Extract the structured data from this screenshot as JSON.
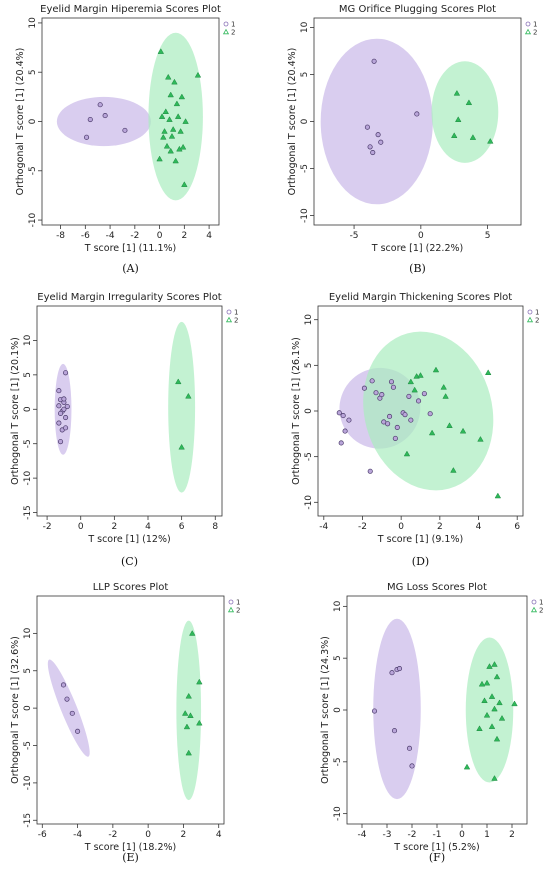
{
  "colors": {
    "group1": "#8a72b8",
    "group1_fill": "#b9a5d9",
    "group2": "#2fb85a",
    "group2_fill": "#7fdc9c",
    "ellipse1": "#c9b8e8",
    "ellipse2": "#a9ecbf"
  },
  "chart_data": [
    {
      "type": "scatter",
      "caption": "(A)",
      "title": "Eyelid Margin Hiperemia Scores Plot",
      "xlabel": "T score [1] (11.1%)",
      "ylabel": "Orthogonal T score [1] (20.4%)",
      "xlim": [
        -9.5,
        4.8
      ],
      "ylim": [
        -10.5,
        10.5
      ],
      "xticks": [
        -8,
        -6,
        -4,
        -2,
        0,
        2,
        4
      ],
      "yticks": [
        -10,
        -5,
        0,
        5,
        10
      ],
      "legend": {
        "position": "top-right",
        "entries": [
          "1",
          "2"
        ]
      },
      "ellipses": [
        {
          "group": "1",
          "cx": -4.5,
          "cy": 0,
          "rx": 3.8,
          "ry": 2.5
        },
        {
          "group": "2",
          "cx": 1.3,
          "cy": 0.5,
          "rx": 2.2,
          "ry": 8.5
        }
      ],
      "series": [
        {
          "name": "1",
          "x": [
            -5.6,
            -5.9,
            -4.8,
            -4.4,
            -2.8
          ],
          "y": [
            0.2,
            -1.6,
            1.7,
            0.6,
            -0.9
          ]
        },
        {
          "name": "2",
          "x": [
            0.1,
            0.7,
            1.2,
            1.8,
            3.1,
            0.9,
            1.4,
            0.2,
            0.8,
            1.5,
            2.1,
            0.4,
            1.1,
            1.7,
            0.3,
            1.0,
            1.9,
            0.6,
            0.9,
            1.6,
            1.3,
            0.0,
            2.0,
            0.5
          ],
          "y": [
            7.1,
            4.5,
            4.0,
            2.5,
            4.7,
            2.7,
            1.8,
            0.5,
            0.2,
            0.5,
            0.0,
            -1.0,
            -0.8,
            -1.0,
            -1.6,
            -1.5,
            -2.6,
            -2.5,
            -3.0,
            -2.8,
            -4.0,
            -3.8,
            -6.4,
            1.0
          ]
        }
      ]
    },
    {
      "type": "scatter",
      "caption": "(B)",
      "title": "MG Orifice Plugging Scores Plot",
      "xlabel": "T score [1] (22.2%)",
      "ylabel": "Orthogonal T score [1] (20.4%)",
      "xlim": [
        -8,
        7.5
      ],
      "ylim": [
        -11,
        11
      ],
      "xticks": [
        -5,
        0,
        5
      ],
      "yticks": [
        -10,
        -5,
        0,
        5,
        10
      ],
      "legend": {
        "position": "top-right",
        "entries": [
          "1",
          "2"
        ]
      },
      "ellipses": [
        {
          "group": "1",
          "cx": -3.3,
          "cy": 0,
          "rx": 4.2,
          "ry": 8.8
        },
        {
          "group": "2",
          "cx": 3.3,
          "cy": 1.0,
          "rx": 2.5,
          "ry": 5.4
        }
      ],
      "series": [
        {
          "name": "1",
          "x": [
            -3.5,
            -4.0,
            -3.2,
            -3.0,
            -3.8,
            -3.6,
            -0.3
          ],
          "y": [
            6.4,
            -0.6,
            -1.4,
            -2.2,
            -2.7,
            -3.3,
            0.8
          ]
        },
        {
          "name": "2",
          "x": [
            2.7,
            3.6,
            2.8,
            3.9,
            5.2,
            2.5
          ],
          "y": [
            3.0,
            2.0,
            0.2,
            -1.7,
            -2.1,
            -1.5
          ]
        }
      ]
    },
    {
      "type": "scatter",
      "caption": "(C)",
      "title": "Eyelid Margin Irregularity Scores Plot",
      "xlabel": "T score [1] (12%)",
      "ylabel": "Orthogonal T score [1] (20.1%)",
      "xlim": [
        -2.6,
        8.4
      ],
      "ylim": [
        -15.5,
        15
      ],
      "xticks": [
        -2,
        0,
        2,
        4,
        6,
        8
      ],
      "yticks": [
        -15,
        -10,
        -5,
        0,
        5,
        10
      ],
      "legend": {
        "position": "top-right",
        "entries": [
          "1",
          "2"
        ]
      },
      "ellipses": [
        {
          "group": "1",
          "cx": -1.05,
          "cy": 0,
          "rx": 0.5,
          "ry": 6.6
        },
        {
          "group": "2",
          "cx": 6.0,
          "cy": 0.3,
          "rx": 0.8,
          "ry": 12.4
        }
      ],
      "series": [
        {
          "name": "1",
          "x": [
            -1.3,
            -0.9,
            -1.2,
            -1.0,
            -1.3,
            -0.8,
            -1.1,
            -1.2,
            -0.9,
            -1.0,
            -1.3,
            -1.1,
            -0.9,
            -1.2,
            -1.0
          ],
          "y": [
            2.7,
            5.3,
            1.4,
            1.0,
            0.5,
            0.4,
            -0.3,
            -0.6,
            -1.2,
            0.0,
            -2.0,
            -3.0,
            -2.7,
            -4.7,
            1.5
          ]
        },
        {
          "name": "2",
          "x": [
            5.8,
            6.4,
            6.0
          ],
          "y": [
            4.0,
            1.9,
            -5.5
          ]
        }
      ]
    },
    {
      "type": "scatter",
      "caption": "(D)",
      "title": "Eyelid Margin Thickening Scores Plot",
      "xlabel": "T score [1] (9.1%)",
      "ylabel": "Orthogonal T score [1] (26.1%)",
      "xlim": [
        -4.3,
        6.3
      ],
      "ylim": [
        -11.5,
        11.5
      ],
      "xticks": [
        -4,
        -2,
        0,
        2,
        4,
        6
      ],
      "yticks": [
        -10,
        -5,
        0,
        5,
        10
      ],
      "legend": {
        "position": "top-right",
        "entries": [
          "1",
          "2"
        ]
      },
      "ellipses": [
        {
          "group": "1",
          "cx": -1.1,
          "cy": 0.3,
          "rx": 2.1,
          "ry": 4.4,
          "rotate": -38
        },
        {
          "group": "2",
          "cx": 1.4,
          "cy": 0,
          "rx": 3.3,
          "ry": 8.8,
          "rotate": -15
        }
      ],
      "series": [
        {
          "name": "1",
          "x": [
            -3.2,
            -3.0,
            -2.7,
            -2.9,
            -3.1,
            -1.9,
            -1.5,
            -1.3,
            -1.1,
            -1.0,
            -0.9,
            -0.6,
            -0.4,
            -0.5,
            -0.2,
            0.1,
            0.2,
            0.4,
            0.5,
            0.9,
            1.2,
            1.5,
            -1.6,
            -0.3,
            -0.7
          ],
          "y": [
            -0.2,
            -0.5,
            -1.0,
            -2.2,
            -3.5,
            2.5,
            3.3,
            2.0,
            1.4,
            1.8,
            -1.2,
            -0.6,
            2.6,
            3.2,
            -1.8,
            -0.2,
            -0.4,
            1.6,
            -1.0,
            1.1,
            1.9,
            -0.3,
            -6.6,
            -3.0,
            -1.4
          ]
        },
        {
          "name": "2",
          "x": [
            0.8,
            1.0,
            0.5,
            0.7,
            1.8,
            2.2,
            2.3,
            2.5,
            3.2,
            4.1,
            2.7,
            4.5,
            5.0,
            1.6,
            0.3
          ],
          "y": [
            3.8,
            3.9,
            3.2,
            2.3,
            4.5,
            2.6,
            1.6,
            -1.6,
            -2.2,
            -3.1,
            -6.5,
            4.2,
            -9.3,
            -2.4,
            -4.7
          ]
        }
      ]
    },
    {
      "type": "scatter",
      "caption": "(E)",
      "title": "LLP Scores Plot",
      "xlabel": "T score [1] (18.2%)",
      "ylabel": "Orthogonal T score [1] (32.6%)",
      "xlim": [
        -6.3,
        4.3
      ],
      "ylim": [
        -15.5,
        15
      ],
      "xticks": [
        -6,
        -4,
        -2,
        0,
        2,
        4
      ],
      "yticks": [
        -15,
        -10,
        -5,
        0,
        5,
        10
      ],
      "legend": {
        "position": "top-right",
        "entries": [
          "1",
          "2"
        ]
      },
      "ellipses": [
        {
          "group": "1",
          "cx": -4.5,
          "cy": 0,
          "rx": 0.45,
          "ry": 7.0,
          "rotate": -22
        },
        {
          "group": "2",
          "cx": 2.3,
          "cy": -0.3,
          "rx": 0.7,
          "ry": 12.0
        }
      ],
      "series": [
        {
          "name": "1",
          "x": [
            -4.8,
            -4.6,
            -4.3,
            -4.0
          ],
          "y": [
            3.1,
            1.2,
            -0.7,
            -3.1
          ]
        },
        {
          "name": "2",
          "x": [
            2.5,
            2.9,
            2.3,
            2.1,
            2.4,
            2.9,
            2.2,
            2.3
          ],
          "y": [
            10.0,
            3.5,
            1.6,
            -0.7,
            -1.0,
            -2.0,
            -2.5,
            -6.0
          ]
        }
      ]
    },
    {
      "type": "scatter",
      "caption": "(F)",
      "title": "MG Loss Scores Plot",
      "xlabel": "T score [1] (5.2%)",
      "ylabel": "Orthogonal T score [1] (24.3%)",
      "xlim": [
        -4.6,
        2.6
      ],
      "ylim": [
        -11,
        11
      ],
      "xticks": [
        -4,
        -3,
        -2,
        -1,
        0,
        1,
        2
      ],
      "yticks": [
        -10,
        -5,
        0,
        5,
        10
      ],
      "legend": {
        "position": "top-right",
        "entries": [
          "1",
          "2"
        ]
      },
      "ellipses": [
        {
          "group": "1",
          "cx": -2.6,
          "cy": 0.1,
          "rx": 0.95,
          "ry": 8.7
        },
        {
          "group": "2",
          "cx": 1.1,
          "cy": 0,
          "rx": 0.95,
          "ry": 7.0
        }
      ],
      "series": [
        {
          "name": "1",
          "x": [
            -2.6,
            -2.5,
            -2.8,
            -3.5,
            -2.7,
            -2.1,
            -2.0
          ],
          "y": [
            3.9,
            4.0,
            3.6,
            -0.1,
            -2.0,
            -3.7,
            -5.4
          ]
        },
        {
          "name": "2",
          "x": [
            1.3,
            1.1,
            1.4,
            0.8,
            1.0,
            1.2,
            1.5,
            0.9,
            1.3,
            1.0,
            1.6,
            1.2,
            0.7,
            1.4,
            2.1,
            0.2,
            1.3
          ],
          "y": [
            4.4,
            4.2,
            3.2,
            2.5,
            2.6,
            1.3,
            0.7,
            0.9,
            0.1,
            -0.5,
            -0.8,
            -1.6,
            -1.8,
            -2.8,
            0.6,
            -5.5,
            -6.6
          ]
        }
      ]
    }
  ]
}
